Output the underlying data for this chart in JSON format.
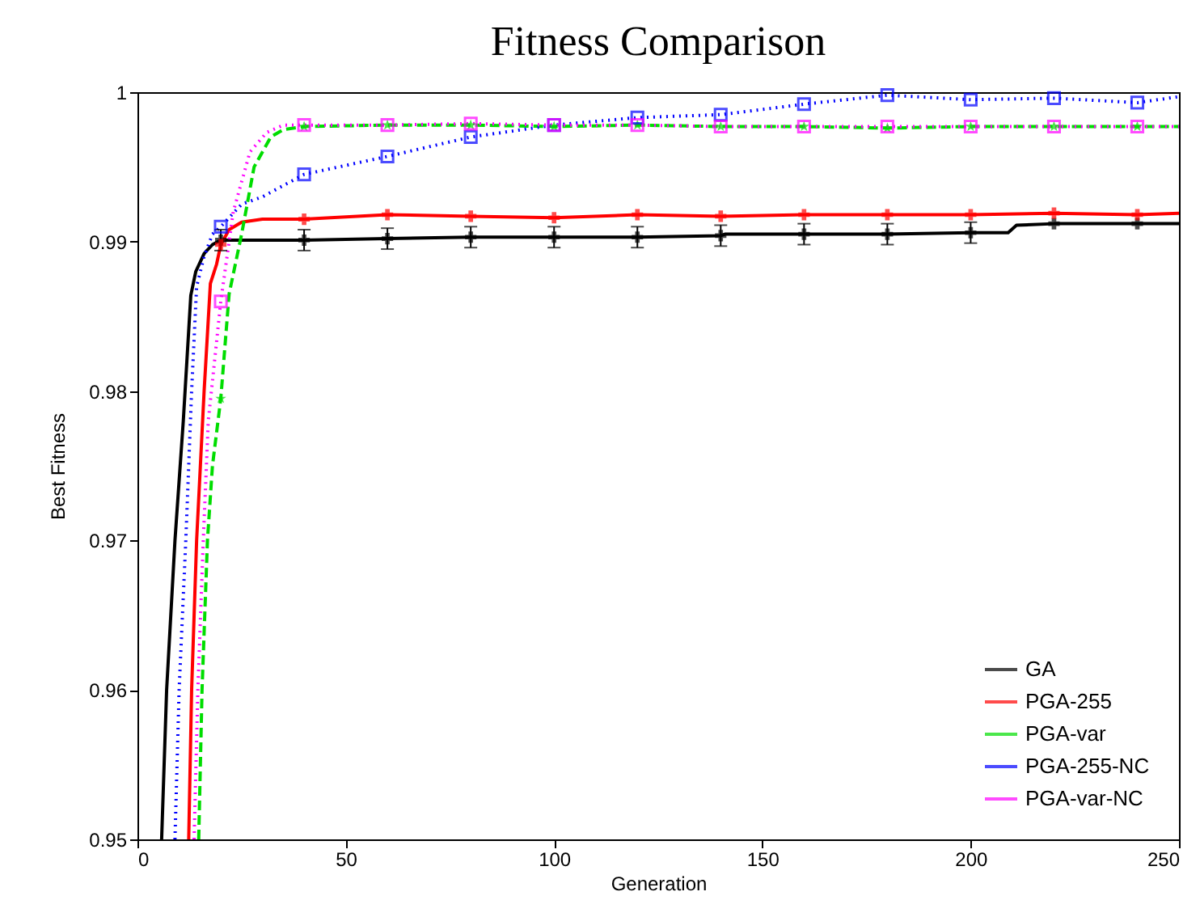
{
  "chart_data": {
    "type": "line",
    "title": "Fitness Comparison",
    "xlabel": "Generation",
    "ylabel": "Best Fitness",
    "xlim": [
      0,
      250
    ],
    "xticks": [
      0,
      50,
      100,
      150,
      200,
      250
    ],
    "ylim": [
      0.95,
      1
    ],
    "yticks": [
      0.95,
      0.96,
      0.97,
      0.98,
      0.99,
      1
    ],
    "grid": false,
    "legend": "bottom right",
    "series": [
      {
        "name": "GA",
        "color": "#000000",
        "line_style": "solid",
        "marker": "cross",
        "x": [
          5.8,
          7,
          9,
          11,
          12.8,
          14,
          16,
          18,
          20,
          40,
          60,
          80,
          100,
          120,
          140,
          141,
          160,
          180,
          200,
          209,
          211,
          220,
          240,
          250
        ],
        "values": [
          0.95,
          0.96,
          0.97,
          0.978,
          0.9864,
          0.988,
          0.9892,
          0.9898,
          0.9901,
          0.9901,
          0.9902,
          0.9903,
          0.9903,
          0.9903,
          0.9904,
          0.9905,
          0.9905,
          0.9905,
          0.9906,
          0.9906,
          0.9911,
          0.9912,
          0.9912,
          0.9912
        ],
        "errors": [
          null,
          null,
          null,
          null,
          null,
          null,
          null,
          null,
          0.0007,
          0.0007,
          0.0007,
          0.0007,
          0.0007,
          0.0007,
          0.0007,
          null,
          0.0007,
          0.0007,
          0.0007,
          null,
          null,
          null,
          null,
          null
        ]
      },
      {
        "name": "PGA-255",
        "color": "#ff0000",
        "line_style": "solid",
        "marker": "cross",
        "x": [
          12.3,
          13,
          14.2,
          16,
          17.5,
          19,
          20,
          22,
          25,
          30,
          40,
          60,
          80,
          100,
          120,
          140,
          160,
          180,
          200,
          220,
          240,
          250
        ],
        "values": [
          0.95,
          0.96,
          0.97,
          0.98,
          0.9872,
          0.9885,
          0.9898,
          0.9908,
          0.9913,
          0.9915,
          0.9915,
          0.9918,
          0.9917,
          0.9916,
          0.9918,
          0.9917,
          0.9918,
          0.9918,
          0.9918,
          0.9919,
          0.9918,
          0.9919
        ]
      },
      {
        "name": "PGA-var",
        "color": "#00dd00",
        "line_style": "dashed",
        "marker": "star",
        "x": [
          14.7,
          15.5,
          16.8,
          18,
          20,
          22,
          25,
          28,
          32,
          35,
          40,
          60,
          80,
          100,
          120,
          140,
          160,
          180,
          200,
          220,
          240,
          250
        ],
        "values": [
          0.95,
          0.96,
          0.97,
          0.975,
          0.9795,
          0.9865,
          0.9905,
          0.995,
          0.997,
          0.9975,
          0.9977,
          0.9978,
          0.9978,
          0.9977,
          0.9978,
          0.9977,
          0.9977,
          0.9976,
          0.9977,
          0.9977,
          0.9977,
          0.9977
        ]
      },
      {
        "name": "PGA-255-NC",
        "color": "#0000ff",
        "line_style": "dotted",
        "marker": "square",
        "x": [
          9,
          10,
          11.6,
          13,
          14.2,
          16,
          18,
          20,
          25,
          30,
          40,
          60,
          80,
          100,
          120,
          140,
          160,
          180,
          200,
          220,
          240,
          250
        ],
        "values": [
          0.95,
          0.96,
          0.97,
          0.98,
          0.987,
          0.989,
          0.9905,
          0.991,
          0.9925,
          0.993,
          0.9945,
          0.9957,
          0.997,
          0.9978,
          0.9983,
          0.9985,
          0.9992,
          0.9998,
          0.9995,
          0.9996,
          0.9993,
          0.9997
        ]
      },
      {
        "name": "PGA-var-NC",
        "color": "#ff00ff",
        "line_style": "dotted",
        "marker": "square",
        "x": [
          13.6,
          14.5,
          15.8,
          17,
          20,
          23,
          27,
          31,
          35,
          40,
          60,
          80,
          100,
          120,
          140,
          160,
          180,
          200,
          220,
          240,
          250
        ],
        "values": [
          0.95,
          0.96,
          0.97,
          0.978,
          0.986,
          0.992,
          0.996,
          0.9973,
          0.9978,
          0.9978,
          0.9978,
          0.9979,
          0.9978,
          0.9978,
          0.9977,
          0.9977,
          0.9977,
          0.9977,
          0.9977,
          0.9977,
          0.9977
        ]
      }
    ]
  }
}
